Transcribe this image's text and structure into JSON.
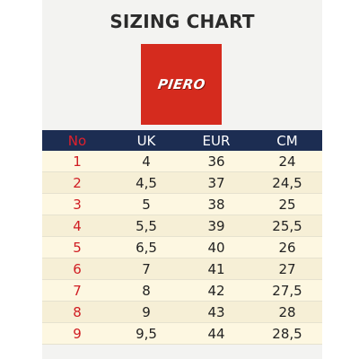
{
  "title": "SIZING CHART",
  "logo": {
    "text": "PIERO",
    "color": "#d52b1e"
  },
  "colors": {
    "header_bg": "#1c2d52",
    "no_color": "#d01d23",
    "row_bg": "#fdf7e1"
  },
  "table": {
    "headers": [
      "No",
      "UK",
      "EUR",
      "CM"
    ],
    "rows": [
      [
        "1",
        "4",
        "36",
        "24"
      ],
      [
        "2",
        "4,5",
        "37",
        "24,5"
      ],
      [
        "3",
        "5",
        "38",
        "25"
      ],
      [
        "4",
        "5,5",
        "39",
        "25,5"
      ],
      [
        "5",
        "6,5",
        "40",
        "26"
      ],
      [
        "6",
        "7",
        "41",
        "27"
      ],
      [
        "7",
        "8",
        "42",
        "27,5"
      ],
      [
        "8",
        "9",
        "43",
        "28"
      ],
      [
        "9",
        "9,5",
        "44",
        "28,5"
      ]
    ]
  }
}
